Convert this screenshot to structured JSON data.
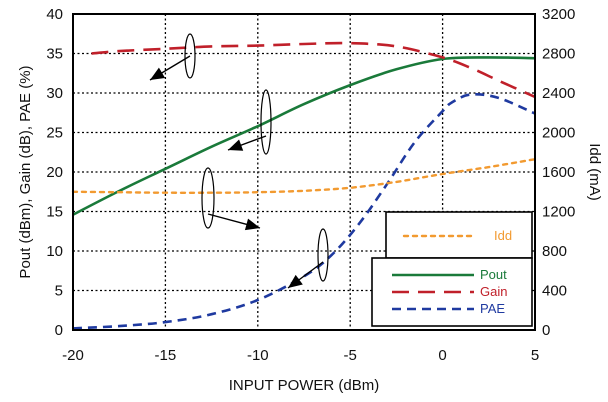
{
  "chart_data": {
    "type": "line",
    "xlabel": "INPUT POWER (dBm)",
    "ylabel_left": "Pout (dBm), Gain (dB), PAE (%)",
    "ylabel_right": "Idd (mA)",
    "xlim": [
      -20,
      5
    ],
    "ylim_left": [
      0,
      40
    ],
    "ylim_right": [
      0,
      3200
    ],
    "x_ticks": [
      "-20",
      "-15",
      "-10",
      "-5",
      "0",
      "5"
    ],
    "y_ticks_left": [
      "0",
      "5",
      "10",
      "15",
      "20",
      "25",
      "30",
      "35",
      "40"
    ],
    "y_ticks_right": [
      "0",
      "400",
      "800",
      "1200",
      "1600",
      "2000",
      "2400",
      "2800",
      "3200"
    ],
    "grid": true,
    "series": [
      {
        "name": "Pout",
        "axis": "left",
        "color": "#1a7a3a",
        "dash": "solid",
        "x": [
          -20,
          -17.5,
          -15,
          -12.5,
          -10,
          -7.5,
          -5,
          -2.5,
          0,
          2.5,
          5
        ],
        "y": [
          14.6,
          17.6,
          20.4,
          23.2,
          25.8,
          28.6,
          31.0,
          33.0,
          34.3,
          34.5,
          34.4
        ]
      },
      {
        "name": "Gain",
        "axis": "left",
        "color": "#c0202a",
        "dash": "long-dash",
        "x": [
          -19,
          -17.5,
          -15,
          -12.5,
          -10,
          -7.5,
          -5,
          -2.5,
          0,
          1.5,
          3,
          5
        ],
        "y": [
          35.0,
          35.3,
          35.6,
          35.9,
          36.0,
          36.2,
          36.3,
          35.9,
          34.5,
          33.2,
          31.6,
          29.5
        ]
      },
      {
        "name": "PAE",
        "axis": "left",
        "color": "#1f3aa0",
        "dash": "short-dash",
        "x": [
          -20,
          -17.5,
          -15,
          -12.5,
          -10,
          -7.5,
          -6,
          -4.5,
          -3,
          -1.5,
          0,
          0.5,
          1.5,
          3,
          5
        ],
        "y": [
          0.2,
          0.5,
          1.0,
          2.0,
          3.8,
          6.8,
          9.5,
          13.5,
          18.5,
          23.8,
          27.7,
          28.8,
          29.8,
          29.4,
          27.4
        ]
      },
      {
        "name": "Idd",
        "axis": "right",
        "color": "#f29a30",
        "dash": "dotted",
        "x": [
          -20,
          -17.5,
          -15,
          -12.5,
          -10,
          -7.5,
          -5,
          -2.5,
          0,
          2.5,
          5
        ],
        "y": [
          1400,
          1395,
          1390,
          1390,
          1395,
          1410,
          1440,
          1500,
          1580,
          1650,
          1730
        ]
      }
    ],
    "legends": [
      {
        "position": "right-middle",
        "entries": [
          "Idd"
        ]
      },
      {
        "position": "bottom-right",
        "entries": [
          "Pout",
          "Gain",
          "PAE"
        ]
      }
    ],
    "annotations": [
      {
        "type": "ellipse-arrow",
        "series": "Gain",
        "points_to": "left-axis"
      },
      {
        "type": "ellipse-arrow",
        "series": "Pout",
        "points_to": "left-axis"
      },
      {
        "type": "ellipse-arrow",
        "series": "Idd",
        "points_to": "right-axis"
      },
      {
        "type": "ellipse-arrow",
        "series": "PAE",
        "points_to": "left-axis"
      }
    ]
  }
}
